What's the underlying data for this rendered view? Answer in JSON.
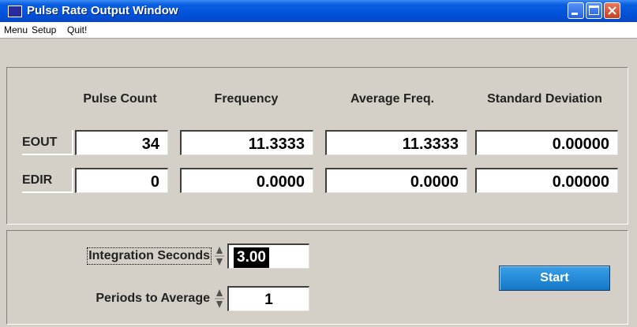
{
  "window": {
    "title": "Pulse Rate Output Window"
  },
  "menu": [
    "Menu",
    "Setup",
    "Quit!"
  ],
  "table": {
    "headers": [
      "Pulse Count",
      "Frequency",
      "Average Freq.",
      "Standard Deviation"
    ],
    "rows": [
      {
        "label": "EOUT",
        "cells": [
          "34",
          "11.3333",
          "11.3333",
          "0.00000"
        ]
      },
      {
        "label": "EDIR",
        "cells": [
          "0",
          "0.0000",
          "0.0000",
          "0.00000"
        ]
      }
    ]
  },
  "controls": [
    {
      "label": "Integration Seconds",
      "value": "3.00"
    },
    {
      "label": "Periods to Average",
      "value": "1"
    }
  ],
  "button": "Start"
}
